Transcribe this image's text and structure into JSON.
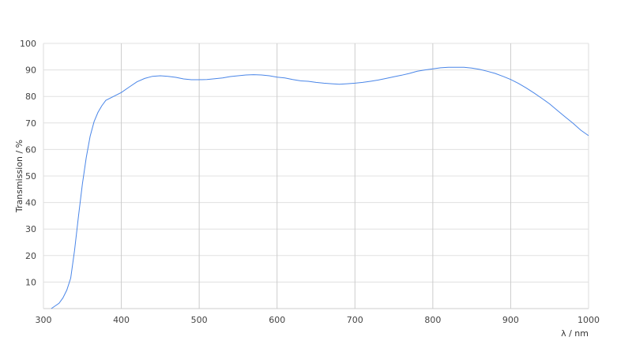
{
  "chart_data": {
    "type": "line",
    "title": "",
    "xlabel": "λ / nm",
    "ylabel": "Transmission / %",
    "xlim": [
      300,
      1000
    ],
    "ylim": [
      0,
      100
    ],
    "xticks": [
      "300",
      "400",
      "500",
      "600",
      "700",
      "800",
      "900",
      "1000"
    ],
    "yticks": [
      "10",
      "20",
      "30",
      "40",
      "50",
      "60",
      "70",
      "80",
      "90",
      "100"
    ],
    "grid": true,
    "line_color": "#4a86e8",
    "series": [
      {
        "x": [
          310,
          320,
          325,
          330,
          335,
          340,
          345,
          350,
          355,
          360,
          365,
          370,
          375,
          380,
          390,
          400,
          410,
          420,
          430,
          440,
          450,
          460,
          470,
          480,
          490,
          500,
          510,
          520,
          530,
          540,
          550,
          560,
          570,
          580,
          590,
          600,
          610,
          620,
          630,
          640,
          650,
          660,
          670,
          680,
          690,
          700,
          710,
          720,
          730,
          740,
          750,
          760,
          770,
          780,
          790,
          800,
          810,
          820,
          830,
          840,
          850,
          860,
          870,
          880,
          890,
          900,
          910,
          920,
          930,
          940,
          950,
          960,
          970,
          980,
          990,
          1000
        ],
        "y": [
          0,
          2,
          4,
          7,
          11.5,
          22,
          35,
          47,
          57,
          65,
          70.5,
          74,
          76.5,
          78.5,
          80,
          81.5,
          83.5,
          85.5,
          86.8,
          87.6,
          87.8,
          87.6,
          87.2,
          86.6,
          86.3,
          86.3,
          86.4,
          86.7,
          87,
          87.5,
          87.8,
          88.1,
          88.2,
          88.1,
          87.8,
          87.3,
          87,
          86.4,
          85.9,
          85.7,
          85.3,
          85,
          84.8,
          84.6,
          84.8,
          85,
          85.3,
          85.7,
          86.2,
          86.8,
          87.4,
          88,
          88.7,
          89.5,
          90,
          90.4,
          90.8,
          91,
          91,
          91,
          90.7,
          90.2,
          89.5,
          88.7,
          87.6,
          86.4,
          84.9,
          83.2,
          81.3,
          79.3,
          77.2,
          74.7,
          72.3,
          69.9,
          67.3,
          65.2
        ]
      }
    ]
  }
}
